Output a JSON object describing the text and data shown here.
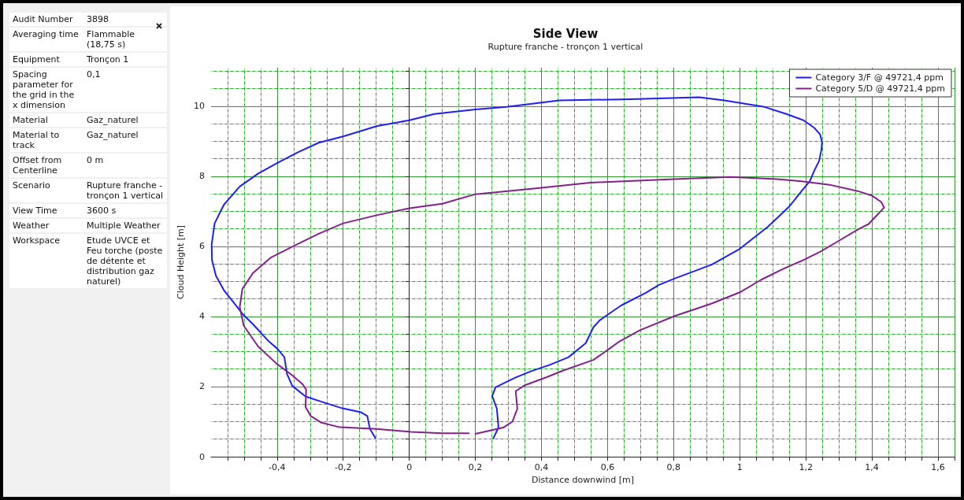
{
  "chart_data": {
    "type": "line",
    "title": "Side View",
    "subtitle": "Rupture franche - tronçon 1 vertical",
    "xlabel": "Distance downwind [m]",
    "ylabel": "Cloud Height [m]",
    "xlim": [
      -0.6,
      1.65
    ],
    "ylim": [
      0,
      11.1
    ],
    "xticks": [
      {
        "value": -0.55,
        "label": null
      },
      {
        "value": -0.5,
        "label": null
      },
      {
        "value": -0.45,
        "label": null
      },
      {
        "value": -0.4,
        "label": "-0,4"
      },
      {
        "value": -0.35,
        "label": null
      },
      {
        "value": -0.3,
        "label": null
      },
      {
        "value": -0.25,
        "label": null
      },
      {
        "value": -0.2,
        "label": "-0,2"
      },
      {
        "value": -0.15,
        "label": null
      },
      {
        "value": -0.1,
        "label": null
      },
      {
        "value": -0.05,
        "label": null
      },
      0,
      {
        "value": 0.05,
        "label": null
      },
      {
        "value": 0.1,
        "label": null
      },
      {
        "value": 0.15,
        "label": null
      },
      {
        "value": 0.2,
        "label": "0,2"
      },
      {
        "value": 0.25,
        "label": null
      },
      {
        "value": 0.3,
        "label": null
      },
      {
        "value": 0.35,
        "label": null
      },
      {
        "value": 0.4,
        "label": "0,4"
      },
      {
        "value": 0.45,
        "label": null
      },
      {
        "value": 0.5,
        "label": null
      },
      {
        "value": 0.55,
        "label": null
      },
      {
        "value": 0.6,
        "label": "0,6"
      },
      {
        "value": 0.65,
        "label": null
      },
      {
        "value": 0.7,
        "label": null
      },
      {
        "value": 0.75,
        "label": null
      },
      {
        "value": 0.8,
        "label": "0,8"
      },
      {
        "value": 0.85,
        "label": null
      },
      {
        "value": 0.9,
        "label": null
      },
      {
        "value": 0.95,
        "label": null
      },
      1,
      {
        "value": 1.05,
        "label": null
      },
      {
        "value": 1.1,
        "label": null
      },
      {
        "value": 1.15,
        "label": null
      },
      {
        "value": 1.2,
        "label": "1,2"
      },
      {
        "value": 1.25,
        "label": null
      },
      {
        "value": 1.3,
        "label": null
      },
      {
        "value": 1.35,
        "label": null
      },
      {
        "value": 1.4,
        "label": "1,4"
      },
      {
        "value": 1.45,
        "label": null
      },
      {
        "value": 1.5,
        "label": null
      },
      {
        "value": 1.55,
        "label": null
      },
      {
        "value": 1.6,
        "label": "1,6"
      },
      {
        "value": 1.65,
        "label": null
      }
    ],
    "yticks": [
      0,
      {
        "value": 0.5,
        "label": null
      },
      {
        "value": 1,
        "label": null
      },
      {
        "value": 1.5,
        "label": null
      },
      2,
      {
        "value": 2.5,
        "label": null
      },
      {
        "value": 3,
        "label": null
      },
      {
        "value": 3.5,
        "label": null
      },
      4,
      {
        "value": 4.5,
        "label": null
      },
      {
        "value": 5,
        "label": null
      },
      {
        "value": 5.5,
        "label": null
      },
      6,
      {
        "value": 6.5,
        "label": null
      },
      {
        "value": 7,
        "label": null
      },
      {
        "value": 7.5,
        "label": null
      },
      8,
      {
        "value": 8.5,
        "label": null
      },
      {
        "value": 9,
        "label": null
      },
      {
        "value": 9.5,
        "label": null
      },
      10,
      {
        "value": 10.5,
        "label": null
      },
      {
        "value": 11,
        "label": null
      }
    ],
    "grid": true,
    "legend": "top right",
    "marker": "none",
    "line_style": "solid",
    "series": [
      {
        "name": "Category 3/F @ 49721,4 ppm",
        "color": "#1f1ff5",
        "x": [
          -0.103,
          -0.119,
          -0.127,
          -0.147,
          -0.202,
          -0.266,
          -0.314,
          -0.354,
          -0.37,
          -0.378,
          -0.398,
          -0.425,
          -0.473,
          -0.505,
          -0.533,
          -0.561,
          -0.585,
          -0.597,
          -0.598,
          -0.589,
          -0.561,
          -0.513,
          -0.457,
          -0.4,
          -0.338,
          -0.274,
          -0.2,
          -0.099,
          0,
          0.076,
          0.2,
          0.294,
          0.454,
          0.67,
          0.877,
          0.953,
          1.075,
          1.141,
          1.193,
          1.226,
          1.243,
          1.249,
          1.247,
          1.24,
          1.226,
          1.212,
          1.188,
          1.15,
          1.085,
          1,
          0.915,
          0.802,
          0.755,
          0.717,
          0.642,
          0.6,
          0.576,
          0.557,
          0.534,
          0.482,
          0.425,
          0.369,
          0.322,
          0.261,
          0.251,
          0.265,
          0.27,
          0.254
        ],
        "values": [
          0.54,
          0.79,
          1.16,
          1.27,
          1.38,
          1.57,
          1.72,
          2.02,
          2.36,
          2.84,
          3.07,
          3.29,
          3.78,
          4.08,
          4.42,
          4.75,
          5.16,
          5.61,
          6.06,
          6.66,
          7.19,
          7.71,
          8.08,
          8.38,
          8.68,
          8.96,
          9.14,
          9.43,
          9.6,
          9.78,
          9.91,
          9.98,
          10.17,
          10.2,
          10.26,
          10.17,
          9.98,
          9.78,
          9.6,
          9.38,
          9.2,
          8.97,
          8.75,
          8.44,
          8.17,
          7.86,
          7.59,
          7.14,
          6.56,
          5.93,
          5.48,
          5.08,
          4.9,
          4.68,
          4.32,
          4.05,
          3.89,
          3.69,
          3.24,
          2.84,
          2.62,
          2.44,
          2.26,
          1.98,
          1.73,
          1.37,
          0.83,
          0.52
        ]
      },
      {
        "name": "Category 5/D @ 49721,4 ppm",
        "color": "#84208c",
        "x": [
          0.2,
          0.284,
          0.312,
          0.327,
          0.322,
          0.35,
          0.416,
          0.463,
          0.557,
          0.604,
          0.633,
          0.698,
          0.802,
          0.915,
          1,
          1.065,
          1.132,
          1.197,
          1.244,
          1.296,
          1.357,
          1.39,
          1.414,
          1.437,
          1.428,
          1.4,
          1.357,
          1.272,
          1.197,
          1.113,
          0.972,
          0.802,
          0.548,
          0.388,
          0.2,
          0.1,
          0,
          -0.099,
          -0.2,
          -0.274,
          -0.346,
          -0.418,
          -0.473,
          -0.505,
          -0.513,
          -0.501,
          -0.457,
          -0.402,
          -0.354,
          -0.322,
          -0.312,
          -0.314,
          -0.298,
          -0.266,
          -0.21,
          -0.099,
          0.006,
          0.1,
          0.18
        ],
        "values": [
          0.65,
          0.83,
          1.0,
          1.37,
          1.87,
          2.04,
          2.27,
          2.45,
          2.76,
          3.07,
          3.27,
          3.61,
          4.01,
          4.37,
          4.69,
          5.05,
          5.36,
          5.63,
          5.85,
          6.14,
          6.48,
          6.64,
          6.88,
          7.11,
          7.27,
          7.45,
          7.58,
          7.76,
          7.85,
          7.92,
          7.98,
          7.92,
          7.82,
          7.66,
          7.49,
          7.22,
          7.09,
          6.89,
          6.66,
          6.36,
          6.03,
          5.69,
          5.24,
          4.79,
          4.27,
          3.74,
          3.14,
          2.66,
          2.32,
          2.06,
          1.91,
          1.42,
          1.16,
          0.97,
          0.84,
          0.79,
          0.71,
          0.67,
          0.67
        ]
      }
    ],
    "annotations": [
      "Audit Number",
      "3898",
      "Averaging time",
      "Flammable (18,75 s)",
      "Equipment",
      "Tronçon 1",
      "Spacing parameter for the grid in the x dimension",
      "0,1",
      "Material",
      "Gaz_naturel",
      "Material to track",
      "Gaz_naturel",
      "Offset from Centerline",
      "0 m",
      "Scenario",
      "Rupture franche - tronçon 1 vertical",
      "View Time",
      "3600 s",
      "Weather",
      "Multiple Weather",
      "Workspace",
      "Etude UVCE et Feu torche (poste de détente et distribution gaz naturel)"
    ]
  }
}
